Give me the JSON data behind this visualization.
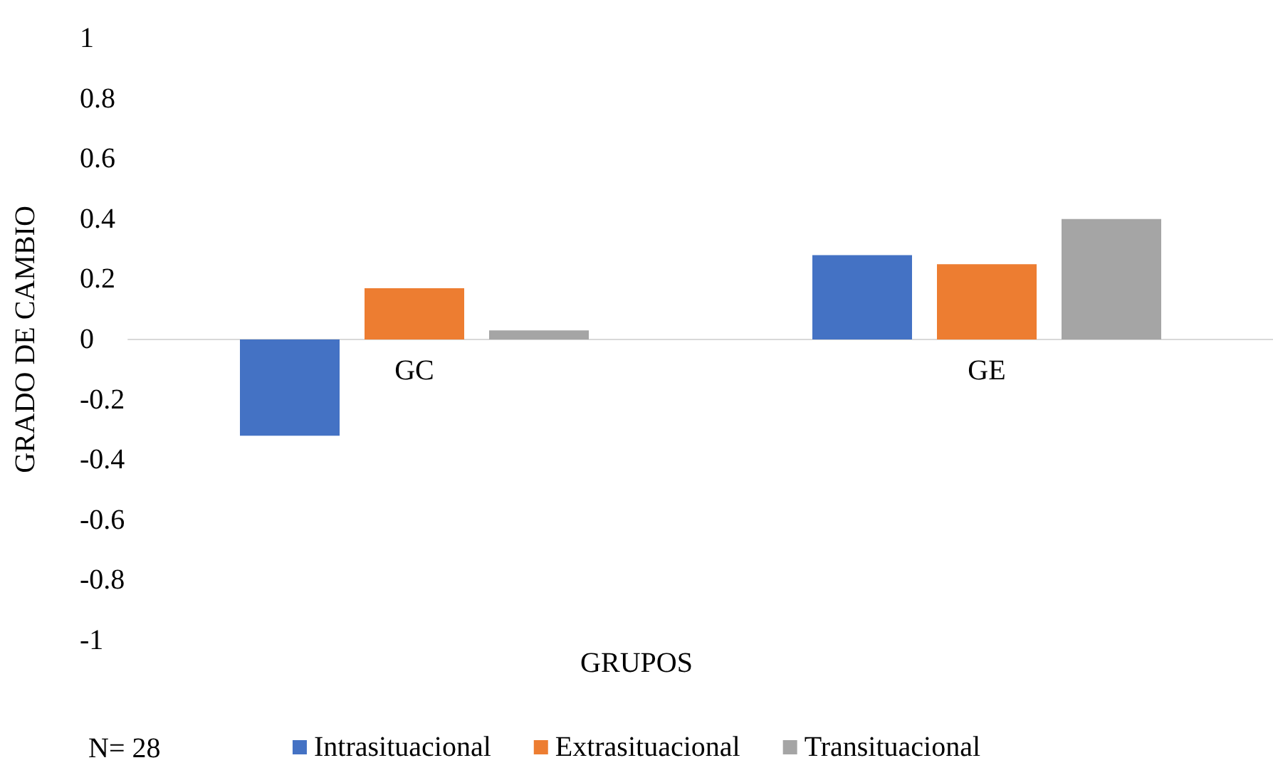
{
  "chart_data": {
    "type": "bar",
    "xlabel": "GRUPOS",
    "ylabel": "GRADO DE CAMBIO",
    "categories": [
      "GC",
      "GE"
    ],
    "series": [
      {
        "name": "Intrasituacional",
        "color": "#4472c4",
        "values": [
          -0.32,
          0.28
        ]
      },
      {
        "name": "Extrasituacional",
        "color": "#ed7d31",
        "values": [
          0.17,
          0.25
        ]
      },
      {
        "name": "Transituacional",
        "color": "#a5a5a5",
        "values": [
          0.03,
          0.4
        ]
      }
    ],
    "ylim": [
      -1,
      1
    ],
    "yticks": [
      -1,
      -0.8,
      -0.6,
      -0.4,
      -0.2,
      0,
      0.2,
      0.4,
      0.6,
      0.8,
      1
    ],
    "grid": false,
    "legend": "bottom",
    "annotations": [
      "N= 28"
    ]
  }
}
